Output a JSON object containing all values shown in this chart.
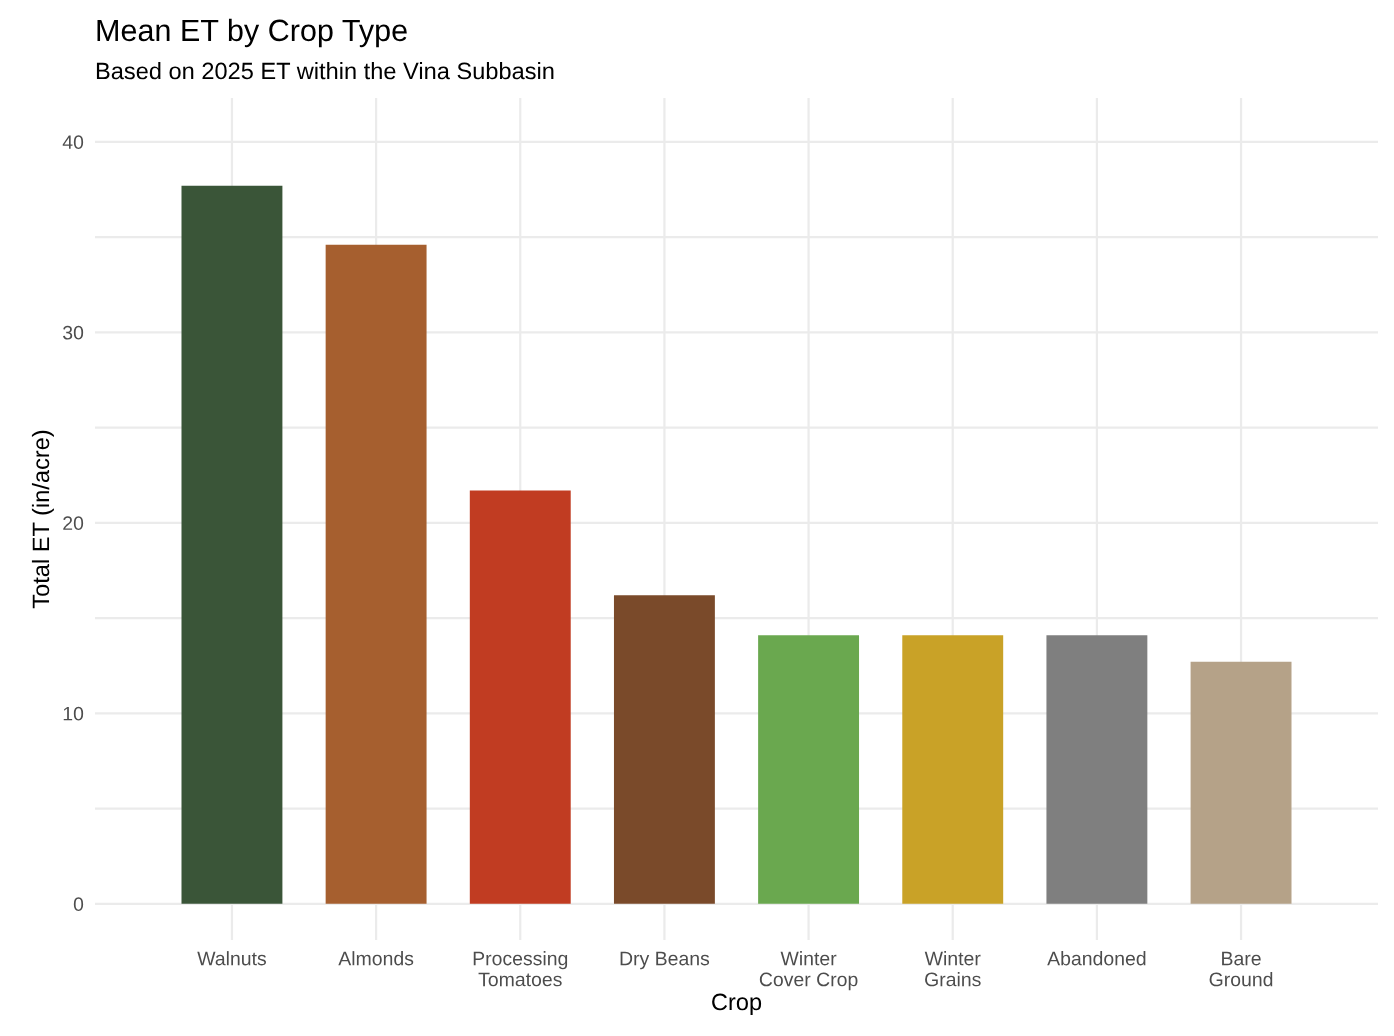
{
  "chart_data": {
    "type": "bar",
    "title": "Mean ET by Crop Type",
    "subtitle": "Based on 2025 ET within the Vina Subbasin",
    "xlabel": "Crop",
    "ylabel": "Total ET (in/acre)",
    "categories": [
      "Walnuts",
      "Almonds",
      "Processing\nTomatoes",
      "Dry Beans",
      "Winter\nCover Crop",
      "Winter\nGrains",
      "Abandoned",
      "Bare\nGround"
    ],
    "values": [
      37.7,
      34.6,
      21.7,
      16.2,
      14.1,
      14.1,
      14.1,
      12.7
    ],
    "colors": [
      "#3a5538",
      "#a65f2f",
      "#c13c22",
      "#7a4a2a",
      "#6aa84f",
      "#c9a227",
      "#7f7f7f",
      "#b5a288"
    ],
    "ylim": [
      -1.9,
      42.3
    ],
    "yticks": [
      0,
      {
        "value": 5,
        "label": null
      },
      10,
      {
        "value": 15,
        "label": null
      },
      20,
      {
        "value": 25,
        "label": null
      },
      30,
      {
        "value": 35,
        "label": null
      },
      40
    ],
    "grid": true,
    "legend": false
  }
}
